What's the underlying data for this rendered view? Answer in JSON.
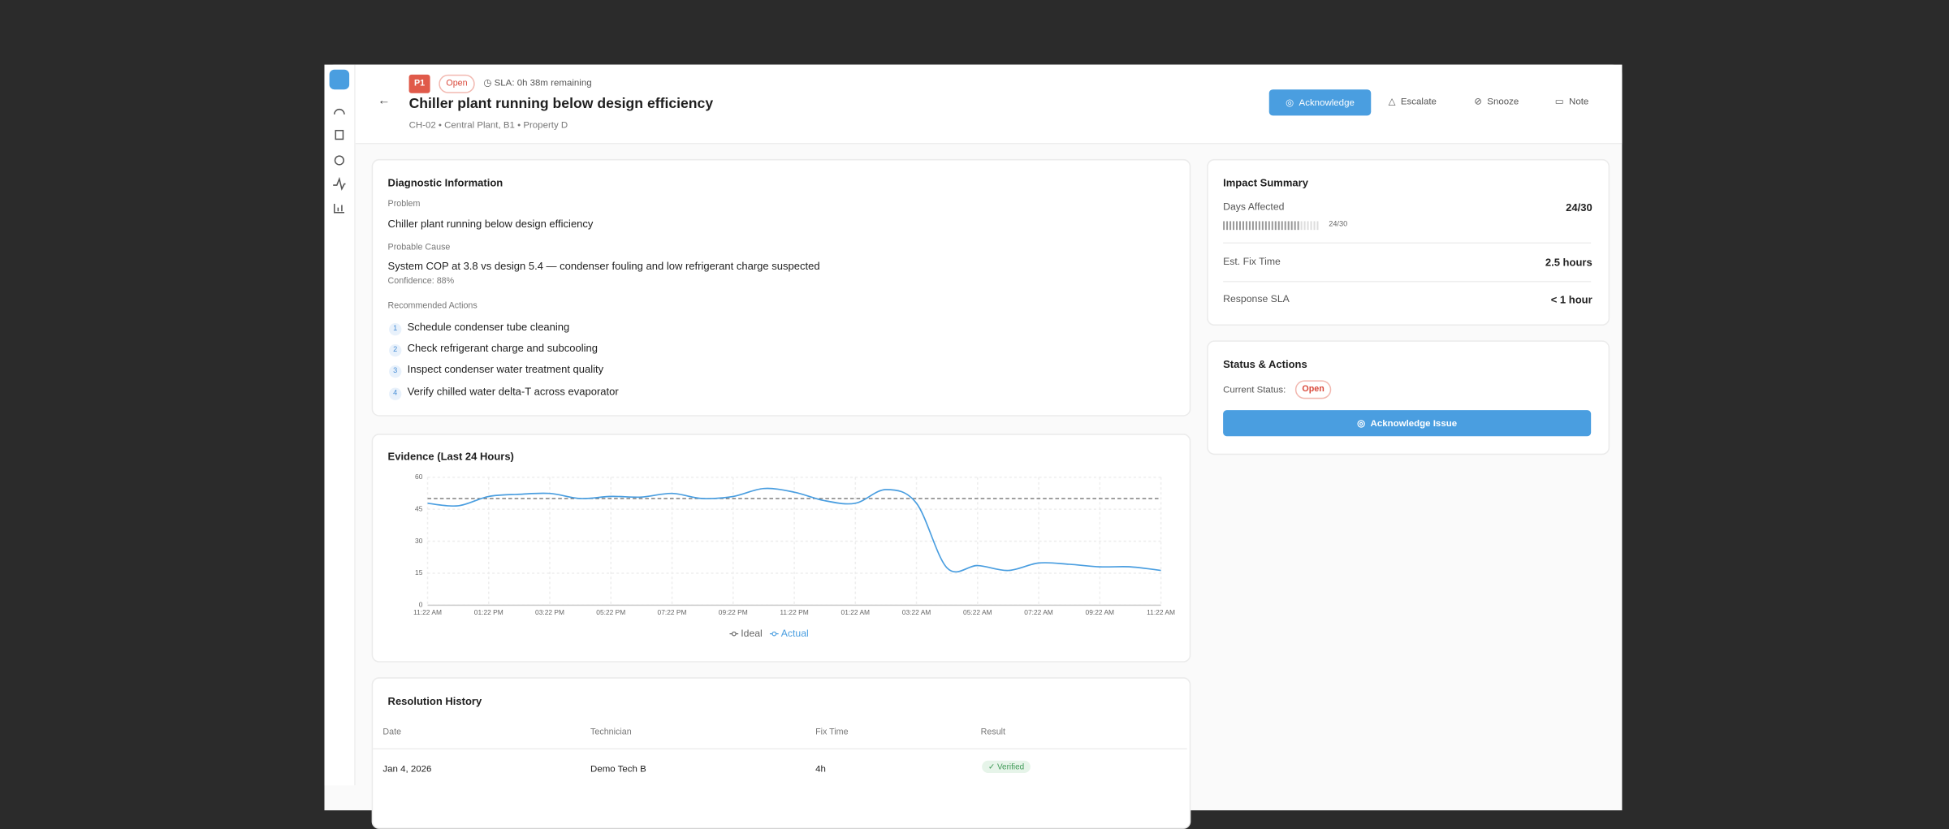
{
  "header": {
    "priority": "P1",
    "status": "Open",
    "sla": "SLA: 0h 38m remaining",
    "title": "Chiller plant running below design efficiency",
    "subtitle": "CH-02 • Central Plant, B1 • Property D",
    "actions": [
      "Acknowledge",
      "Escalate",
      "Snooze",
      "Note"
    ]
  },
  "diagnostic": {
    "title": "Diagnostic Information",
    "problem_label": "Problem",
    "problem": "Chiller plant running below design efficiency",
    "cause_label": "Probable Cause",
    "cause": "System COP at 3.8 vs design 5.4 — condenser fouling and low refrigerant charge suspected",
    "confidence": "Confidence: 88%",
    "actions_label": "Recommended Actions",
    "actions": [
      {
        "number": 1,
        "text": "Schedule condenser tube cleaning"
      },
      {
        "number": 2,
        "text": "Check refrigerant charge and subcooling"
      },
      {
        "number": 3,
        "text": "Inspect condenser water treatment quality"
      },
      {
        "number": 4,
        "text": "Verify chilled water delta-T across evaporator"
      }
    ]
  },
  "impact": {
    "title": "Impact Summary",
    "days_label": "Days Affected",
    "days_value": "24/30",
    "days_affected": 24,
    "days_total": 30,
    "fix_label": "Est. Fix Time",
    "fix_value": "2.5 hours",
    "sla_label": "Response SLA",
    "sla_value": "< 1 hour"
  },
  "status_card": {
    "title": "Status & Actions",
    "current_label": "Current Status:",
    "current": "Open",
    "button": "Acknowledge Issue"
  },
  "chart_data": {
    "type": "line",
    "title": "Evidence (Last 24 Hours)",
    "categories": [
      "11:22 AM",
      null,
      "01:22 PM",
      null,
      "03:22 PM",
      null,
      "05:22 PM",
      null,
      "07:22 PM",
      null,
      "09:22 PM",
      null,
      "11:22 PM",
      null,
      "01:22 AM",
      null,
      "03:22 AM",
      null,
      "05:22 AM",
      null,
      "07:22 AM",
      null,
      "09:22 AM",
      null,
      "11:22 AM"
    ],
    "series": [
      {
        "name": "Ideal",
        "color": "#666666",
        "dashed": true,
        "values": [
          50,
          50,
          50,
          50,
          50,
          50,
          50,
          50,
          50,
          50,
          50,
          50,
          50,
          50,
          50,
          50,
          50,
          50,
          50,
          50,
          50,
          50,
          50,
          50,
          50
        ]
      },
      {
        "name": "Actual",
        "color": "#4a9ee0",
        "values": [
          47.8,
          46.6,
          51,
          52,
          52.4,
          50,
          51,
          50.7,
          52.4,
          50,
          51,
          54.7,
          53,
          49,
          47.8,
          54.2,
          47.8,
          17.5,
          18.6,
          16.3,
          19.8,
          19.2,
          18,
          18,
          16.3
        ]
      }
    ],
    "ylim": [
      0,
      60
    ],
    "yticks": [
      0,
      15,
      30,
      45,
      60
    ],
    "grid": true
  },
  "history": {
    "title": "Resolution History",
    "columns": [
      "Date",
      "Technician",
      "Fix Time",
      "Result"
    ],
    "rows": [
      [
        "Jan 4, 2026",
        "Demo Tech B",
        "4h",
        "Verified"
      ]
    ]
  }
}
